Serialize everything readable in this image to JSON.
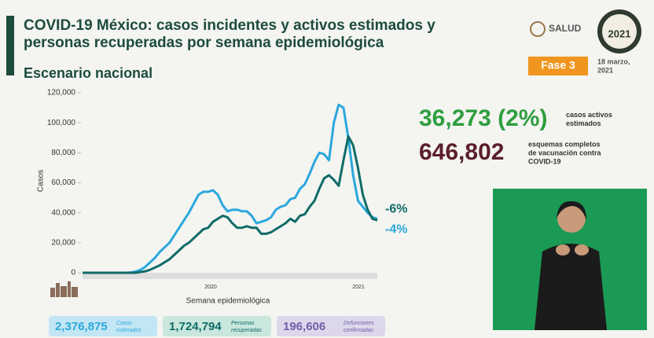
{
  "header": {
    "title_lines": [
      "COVID-19 México: casos incidentes y activos estimados y",
      "personas recuperadas por semana epidemiológica"
    ],
    "subtitle": "Escenario nacional",
    "logo": "SALUD",
    "phase": "Fase 3",
    "date_lines": [
      "18 marzo,",
      "2021"
    ],
    "badge_year": "2021"
  },
  "chart_data": {
    "type": "line",
    "y_label": "Casos",
    "x_label": "Semana epidemiológica",
    "year_labels": [
      "2020",
      "2021"
    ],
    "categories": [
      null,
      null,
      null,
      null,
      null,
      null,
      null,
      null,
      null,
      null,
      null,
      null,
      null,
      null,
      null,
      null,
      null,
      null,
      null,
      null,
      null,
      null,
      null,
      null,
      null,
      null,
      null,
      null,
      null,
      null,
      null,
      null,
      null,
      null,
      null,
      null,
      null,
      null,
      null,
      null,
      null,
      null,
      null,
      null,
      null,
      null,
      null,
      null,
      null,
      null,
      null,
      null,
      null,
      null,
      null,
      null,
      null,
      null,
      null,
      null,
      null,
      null
    ],
    "series": [
      {
        "color": "#2aa8dc",
        "end_label": "-4%",
        "values": [
          0,
          0,
          0,
          0,
          0,
          0,
          0,
          0,
          0,
          0,
          200,
          800,
          2000,
          4000,
          7000,
          10000,
          14000,
          17000,
          20000,
          25000,
          30000,
          35000,
          40000,
          46000,
          52000,
          54000,
          54000,
          55000,
          52000,
          45000,
          41000,
          42000,
          42000,
          41000,
          41000,
          38000,
          33000,
          34000,
          35000,
          37000,
          42000,
          44000,
          45000,
          49000,
          50000,
          56000,
          59000,
          66000,
          74000,
          80000,
          79000,
          75000,
          100000,
          112000,
          110000,
          90000,
          65000,
          48000,
          44000,
          40000,
          37000,
          36000
        ]
      },
      {
        "color": "#0f6b68",
        "end_label": "-6%",
        "values": [
          0,
          0,
          0,
          0,
          0,
          0,
          0,
          0,
          0,
          0,
          0,
          0,
          500,
          1000,
          2000,
          3500,
          5000,
          7000,
          9000,
          12000,
          15000,
          18000,
          20000,
          23000,
          26000,
          29000,
          30000,
          34000,
          36000,
          38000,
          37000,
          33000,
          30000,
          30000,
          31000,
          30000,
          30000,
          26000,
          26000,
          27000,
          29000,
          31000,
          33000,
          36000,
          34000,
          38000,
          39000,
          44000,
          48000,
          56000,
          63000,
          65000,
          62000,
          58000,
          75000,
          91000,
          85000,
          70000,
          52000,
          42000,
          36000,
          35000
        ]
      }
    ],
    "ylim": [
      0,
      120000
    ],
    "yticks": [
      0,
      {
        "value": 20000,
        "label": "20,000"
      },
      {
        "value": 40000,
        "label": "40,000"
      },
      {
        "value": 60000,
        "label": "60,000"
      },
      {
        "value": 80000,
        "label": "80,000"
      },
      {
        "value": 100000,
        "label": "100,000"
      },
      {
        "value": 120000,
        "label": "120,000"
      }
    ],
    "grid": false
  },
  "stats": [
    {
      "value": "36,273 (2%)",
      "color": "#2e9f3f",
      "label_lines": [
        "casos activos",
        "estimados"
      ]
    },
    {
      "value": "646,802",
      "color": "#5a1f2a",
      "label_lines": [
        "esquemas completos",
        "de vacunación contra",
        "COVID-19"
      ]
    }
  ],
  "totals": [
    {
      "value": "2,376,875",
      "label_lines": [
        "Casos",
        "estimados"
      ]
    },
    {
      "value": "1,724,794",
      "label_lines": [
        "Personas",
        "recuperadas"
      ]
    },
    {
      "value": "196,606",
      "label_lines": [
        "Defunciones",
        "confirmadas"
      ]
    }
  ]
}
